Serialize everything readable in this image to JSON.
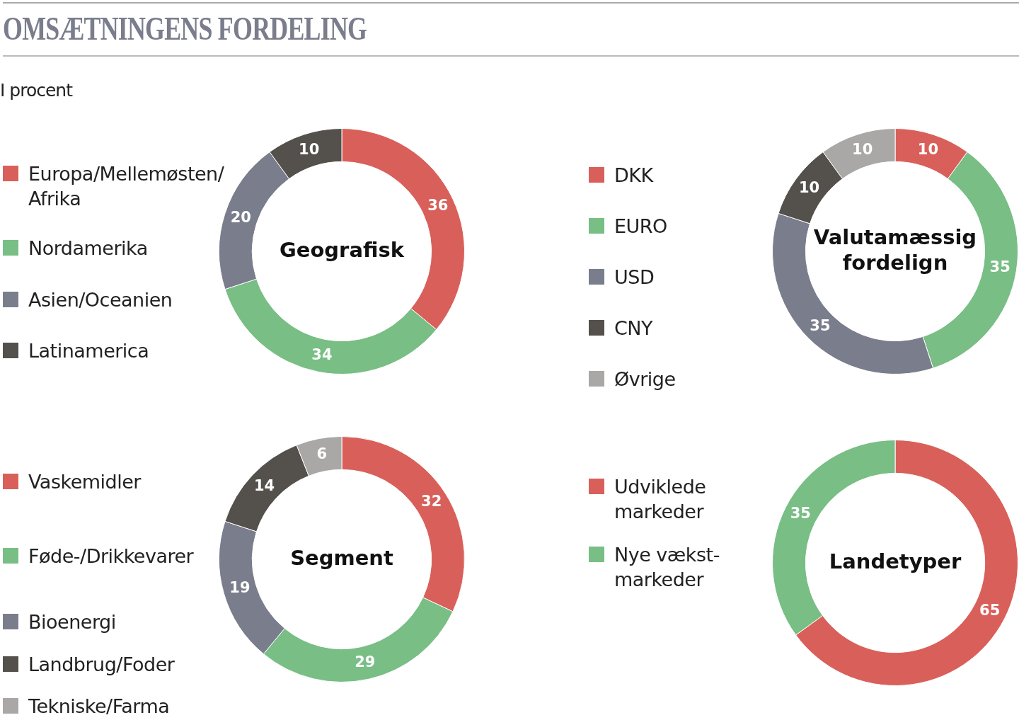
{
  "chart_data": [
    {
      "type": "other",
      "title": "OMSÆTNINGENS FORDELING",
      "subtitle": "I procent"
    },
    {
      "type": "donut",
      "title": "Geografisk",
      "categories": [
        "Europa/Mellemøsten/Afrika",
        "Nordamerika",
        "Asien/Oceanien",
        "Latinamerica"
      ],
      "values": [
        36,
        34,
        20,
        10
      ],
      "colors": [
        "#d9605a",
        "#78be85",
        "#7a7d8c",
        "#54504b"
      ],
      "data_labels": true,
      "legend": "left"
    },
    {
      "type": "donut",
      "title": "Valutamæssig fordelign",
      "categories": [
        "DKK",
        "EURO",
        "USD",
        "CNY",
        "Øvrige"
      ],
      "values": [
        10,
        35,
        35,
        10,
        10
      ],
      "colors": [
        "#d9605a",
        "#78be85",
        "#7a7d8c",
        "#54504b",
        "#a9a8a6"
      ],
      "data_labels": true,
      "legend": "left"
    },
    {
      "type": "donut",
      "title": "Segment",
      "categories": [
        "Vaskemidler",
        "Føde-/Drikkevarer",
        "Bioenergi",
        "Landbrug/Foder",
        "Tekniske/Farma"
      ],
      "values": [
        32,
        29,
        19,
        14,
        6
      ],
      "colors": [
        "#d9605a",
        "#78be85",
        "#7a7d8c",
        "#54504b",
        "#a9a8a6"
      ],
      "data_labels": true,
      "legend": "left"
    },
    {
      "type": "donut",
      "title": "Landetyper",
      "categories": [
        "Udviklede markeder",
        "Nye vækst-markeder"
      ],
      "values": [
        65,
        35
      ],
      "colors": [
        "#d9605a",
        "#78be85"
      ],
      "data_labels": true,
      "legend": "left"
    }
  ]
}
